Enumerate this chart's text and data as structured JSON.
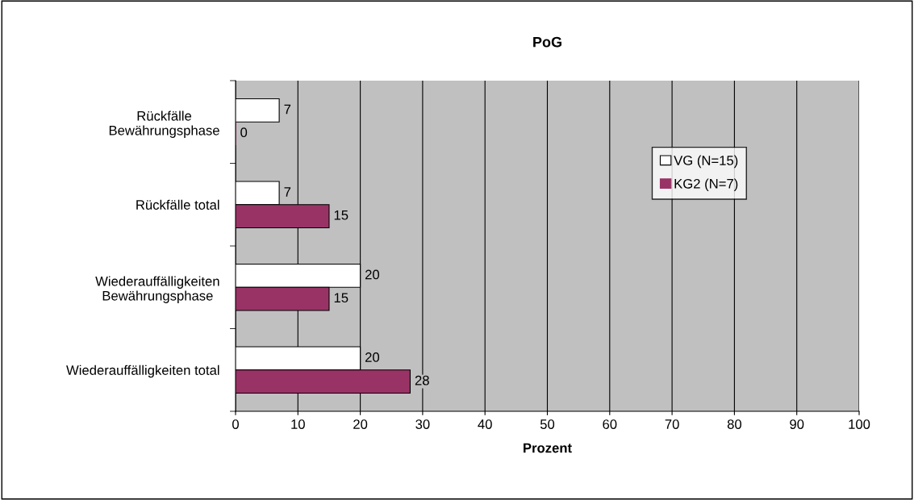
{
  "chart_data": {
    "type": "bar",
    "orientation": "horizontal",
    "title": "PoG",
    "xlabel": "Prozent",
    "categories": [
      "Rückfälle\nBewährungsphase",
      "Rückfälle total",
      "Wiederauffälligkeiten\nBewährungsphase",
      "Wiederauffälligkeiten total"
    ],
    "series": [
      {
        "name": "VG (N=15)",
        "color": "#ffffff",
        "values": [
          7,
          7,
          20,
          20
        ]
      },
      {
        "name": "KG2 (N=7)",
        "color": "#993366",
        "values": [
          0,
          15,
          15,
          28
        ]
      }
    ],
    "xlim": [
      0,
      100
    ],
    "xticks": [
      0,
      10,
      20,
      30,
      40,
      50,
      60,
      70,
      80,
      90,
      100
    ],
    "grid": "x",
    "legend": "right",
    "data_labels": true
  }
}
